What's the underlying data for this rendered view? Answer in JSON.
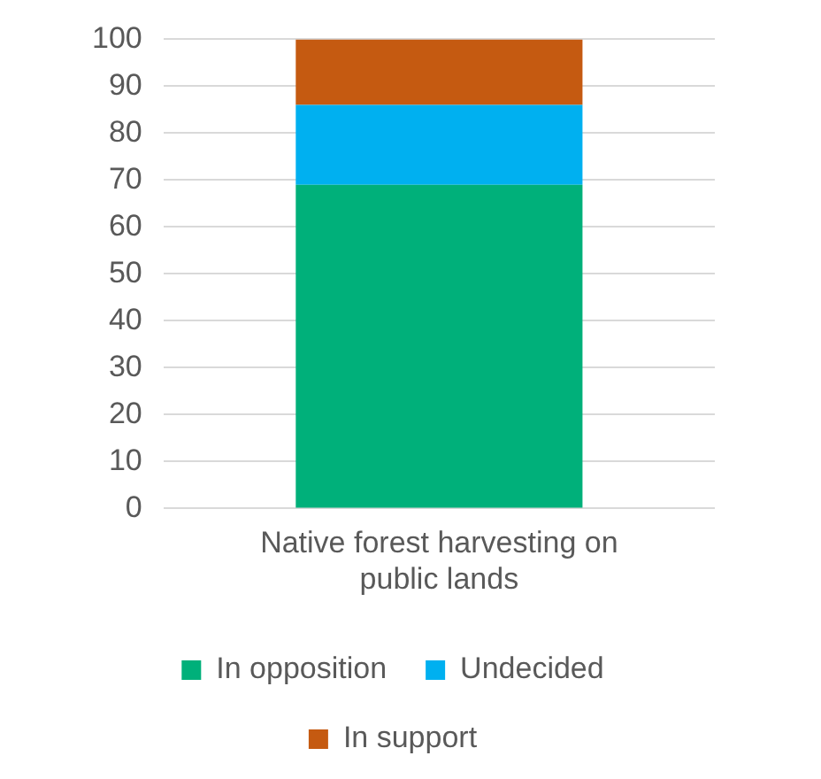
{
  "chart_data": {
    "type": "bar",
    "stacked": true,
    "categories": [
      "Native forest harvesting on public lands"
    ],
    "series": [
      {
        "name": "In opposition",
        "color": "#00b07a",
        "values": [
          69
        ]
      },
      {
        "name": "Undecided",
        "color": "#00b0f0",
        "values": [
          17
        ]
      },
      {
        "name": "In support",
        "color": "#c55a11",
        "values": [
          14
        ]
      }
    ],
    "ylim": [
      0,
      100
    ],
    "yticks": [
      0,
      10,
      20,
      30,
      40,
      50,
      60,
      70,
      80,
      90,
      100
    ],
    "grid": "y",
    "legend": "bottom"
  }
}
